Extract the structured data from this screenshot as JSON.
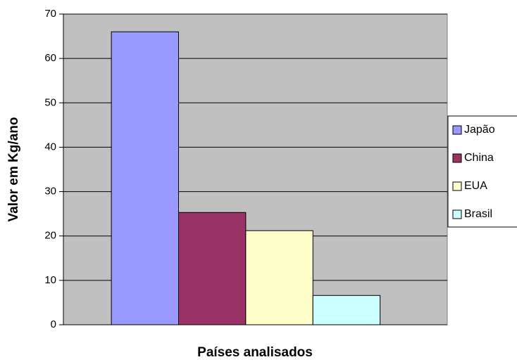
{
  "chart_data": {
    "type": "bar",
    "x_label": "Países analisados",
    "y_label": "Valor em Kg/ano",
    "categories": [
      null
    ],
    "series": [
      {
        "name": "Japão",
        "color": "#9999FF",
        "values": [
          66
        ]
      },
      {
        "name": "China",
        "color": "#993366",
        "values": [
          25.3
        ]
      },
      {
        "name": "EUA",
        "color": "#FFFFCC",
        "values": [
          21.2
        ]
      },
      {
        "name": "Brasil",
        "color": "#CCFFFF",
        "values": [
          6.6
        ]
      }
    ],
    "ylim": [
      0,
      70
    ],
    "yticks": [
      0,
      10,
      20,
      30,
      40,
      50,
      60,
      70
    ],
    "grid": true,
    "legend": "right",
    "plot_background": "#C0C0C0"
  }
}
